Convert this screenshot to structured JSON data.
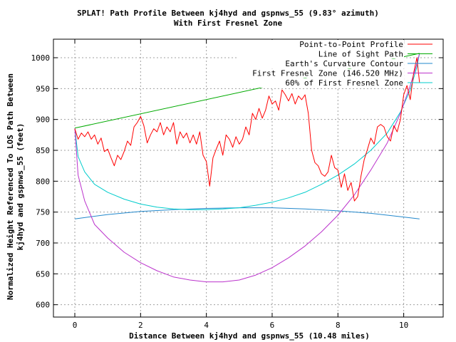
{
  "chart_data": {
    "type": "line",
    "title_line1": "SPLAT! Path Profile Between kj4hyd and gspnws_55 (9.83° azimuth)",
    "title_line2": "With First Fresnel Zone",
    "xlabel": "Distance Between kj4hyd and gspnws_55 (10.48 miles)",
    "ylabel_line1": "Normalized Height Referenced To LOS Path Between",
    "ylabel_line2": "kj4hyd and gspnws_55 (feet)",
    "xlim": [
      -0.65,
      11.2
    ],
    "ylim": [
      580,
      1030
    ],
    "x_ticks": [
      "0",
      "2",
      "4",
      "6",
      "8",
      "10"
    ],
    "x_tick_values": [
      0,
      2,
      4,
      6,
      8,
      10
    ],
    "y_ticks": [
      "600",
      "650",
      "700",
      "750",
      "800",
      "850",
      "900",
      "950",
      "1000"
    ],
    "y_tick_values": [
      600,
      650,
      700,
      750,
      800,
      850,
      900,
      950,
      1000
    ],
    "grid": true,
    "legend_position": "top-right",
    "series": [
      {
        "name": "Point-to-Point Profile",
        "color": "#ff0000",
        "x": [
          0,
          0.1,
          0.2,
          0.3,
          0.4,
          0.5,
          0.6,
          0.7,
          0.8,
          0.9,
          1.0,
          1.1,
          1.2,
          1.3,
          1.4,
          1.5,
          1.6,
          1.7,
          1.8,
          1.9,
          2.0,
          2.1,
          2.2,
          2.3,
          2.4,
          2.5,
          2.6,
          2.7,
          2.8,
          2.9,
          3.0,
          3.1,
          3.2,
          3.3,
          3.4,
          3.5,
          3.6,
          3.7,
          3.8,
          3.9,
          4.0,
          4.1,
          4.2,
          4.3,
          4.4,
          4.5,
          4.6,
          4.7,
          4.8,
          4.9,
          5.0,
          5.1,
          5.2,
          5.3,
          5.4,
          5.5,
          5.6,
          5.7,
          5.8,
          5.9,
          6.0,
          6.1,
          6.2,
          6.3,
          6.4,
          6.5,
          6.6,
          6.7,
          6.8,
          6.9,
          7.0,
          7.1,
          7.2,
          7.3,
          7.4,
          7.5,
          7.6,
          7.7,
          7.8,
          7.9,
          8.0,
          8.1,
          8.2,
          8.3,
          8.4,
          8.5,
          8.6,
          8.7,
          8.8,
          8.9,
          9.0,
          9.1,
          9.2,
          9.3,
          9.4,
          9.5,
          9.6,
          9.7,
          9.8,
          9.9,
          10.0,
          10.1,
          10.2,
          10.3,
          10.4,
          10.48
        ],
        "y": [
          885,
          868,
          878,
          872,
          880,
          868,
          875,
          860,
          870,
          848,
          852,
          838,
          825,
          842,
          835,
          848,
          865,
          858,
          888,
          895,
          905,
          890,
          862,
          875,
          885,
          880,
          895,
          875,
          888,
          880,
          895,
          860,
          880,
          870,
          878,
          862,
          875,
          860,
          880,
          842,
          832,
          792,
          838,
          852,
          865,
          842,
          875,
          868,
          855,
          872,
          860,
          868,
          888,
          875,
          910,
          900,
          918,
          902,
          915,
          938,
          925,
          930,
          915,
          948,
          940,
          930,
          942,
          925,
          938,
          932,
          940,
          910,
          850,
          830,
          825,
          812,
          808,
          815,
          842,
          822,
          818,
          790,
          812,
          785,
          798,
          768,
          775,
          808,
          835,
          852,
          870,
          860,
          888,
          892,
          888,
          872,
          865,
          890,
          880,
          900,
          940,
          955,
          932,
          975,
          1000,
          960
        ]
      },
      {
        "name": "Line of Sight Path",
        "color": "#00aa00",
        "x": [
          0,
          10.48
        ],
        "y": [
          886,
          1007
        ]
      },
      {
        "name": "Earth's Curvature Contour",
        "color": "#2288cc",
        "x": [
          0,
          1,
          2,
          3,
          4,
          5,
          6,
          7,
          8,
          9,
          10,
          10.48
        ],
        "y": [
          739,
          746,
          751,
          754,
          756,
          757,
          757,
          755,
          752,
          748,
          742,
          739
        ]
      },
      {
        "name": "First Fresnel Zone (146.520 MHz)",
        "color": "#bb33cc",
        "x": [
          0,
          0.1,
          0.3,
          0.6,
          1,
          1.5,
          2,
          2.5,
          3,
          3.5,
          4,
          4.5,
          5,
          5.5,
          6,
          6.5,
          7,
          7.5,
          8,
          8.5,
          9,
          9.5,
          9.9,
          10.2,
          10.4,
          10.48
        ],
        "y": [
          886,
          810,
          768,
          730,
          708,
          685,
          668,
          655,
          645,
          640,
          637,
          637,
          640,
          648,
          660,
          676,
          695,
          718,
          745,
          778,
          818,
          862,
          910,
          955,
          990,
          1007
        ]
      },
      {
        "name": "60% of First Fresnel Zone",
        "color": "#00cccc",
        "x": [
          0,
          0.1,
          0.3,
          0.6,
          1,
          1.5,
          2,
          2.5,
          3,
          3.5,
          4,
          4.5,
          5,
          5.5,
          6,
          6.5,
          7,
          7.5,
          8,
          8.5,
          9,
          9.5,
          9.9,
          10.2,
          10.4,
          10.48
        ],
        "y": [
          886,
          840,
          815,
          795,
          782,
          771,
          763,
          758,
          755,
          754,
          754,
          755,
          757,
          761,
          766,
          773,
          782,
          795,
          810,
          828,
          850,
          878,
          912,
          948,
          985,
          1007
        ]
      }
    ]
  }
}
